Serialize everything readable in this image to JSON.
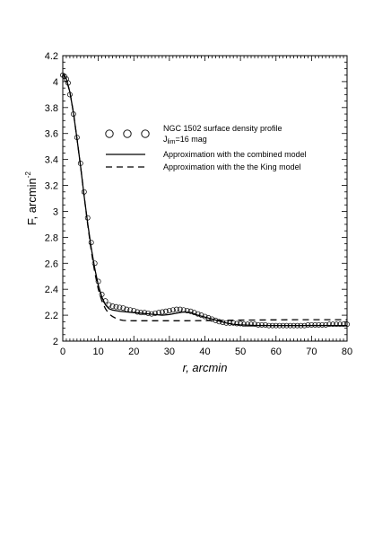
{
  "chart_data": {
    "type": "scatter",
    "xlabel": "r, arcmin",
    "ylabel": "F, arcmin",
    "ylabel_superscript": "-2",
    "xlim": [
      0,
      80
    ],
    "ylim": [
      2,
      4.2
    ],
    "x_ticks": [
      0,
      10,
      20,
      30,
      40,
      50,
      60,
      70,
      80
    ],
    "y_ticks": [
      2,
      2.2,
      2.4,
      2.6,
      2.8,
      3,
      3.2,
      3.4,
      3.6,
      3.8,
      4,
      4.2
    ],
    "x_tick_labels": [
      "0",
      "10",
      "20",
      "30",
      "40",
      "50",
      "60",
      "70",
      "80"
    ],
    "y_tick_labels": [
      "2",
      "2.2",
      "2.4",
      "2.6",
      "2.8",
      "3",
      "3.2",
      "3.4",
      "3.6",
      "3.8",
      "4",
      "4.2"
    ],
    "grid": false,
    "legend_position": "upper-right",
    "legend": {
      "observed_line1": "NGC 1502 surface density profile",
      "observed_line2_main": "J",
      "observed_line2_sub": "lim",
      "observed_line2_rest": "=16 mag",
      "combined": "Approximation with the combined model",
      "king": "Approximation with the the King model"
    },
    "series": [
      {
        "name": "NGC 1502 surface density profile",
        "style": "open-circles",
        "x": [
          0,
          0.5,
          1,
          1.5,
          2,
          3,
          4,
          5,
          6,
          7,
          8,
          9,
          10,
          11,
          12,
          13,
          14,
          15,
          16,
          17,
          18,
          19,
          20,
          21,
          22,
          23,
          24,
          25,
          26,
          27,
          28,
          29,
          30,
          31,
          32,
          33,
          34,
          35,
          36,
          37,
          38,
          39,
          40,
          41,
          42,
          43,
          44,
          45,
          46,
          47,
          48,
          49,
          50,
          51,
          52,
          53,
          54,
          55,
          56,
          57,
          58,
          59,
          60,
          61,
          62,
          63,
          64,
          65,
          66,
          67,
          68,
          69,
          70,
          71,
          72,
          73,
          74,
          75,
          76,
          77,
          78,
          79,
          80
        ],
        "y": [
          4.05,
          4.04,
          4.02,
          3.99,
          3.9,
          3.75,
          3.57,
          3.37,
          3.15,
          2.95,
          2.76,
          2.6,
          2.46,
          2.36,
          2.31,
          2.28,
          2.27,
          2.265,
          2.26,
          2.255,
          2.245,
          2.24,
          2.235,
          2.225,
          2.22,
          2.22,
          2.215,
          2.21,
          2.215,
          2.22,
          2.225,
          2.23,
          2.235,
          2.24,
          2.245,
          2.245,
          2.24,
          2.235,
          2.23,
          2.22,
          2.21,
          2.2,
          2.19,
          2.18,
          2.17,
          2.16,
          2.15,
          2.145,
          2.14,
          2.14,
          2.14,
          2.135,
          2.135,
          2.13,
          2.13,
          2.13,
          2.13,
          2.125,
          2.125,
          2.125,
          2.12,
          2.12,
          2.12,
          2.12,
          2.12,
          2.12,
          2.12,
          2.12,
          2.12,
          2.12,
          2.12,
          2.125,
          2.125,
          2.125,
          2.125,
          2.125,
          2.125,
          2.13,
          2.13,
          2.13,
          2.13,
          2.13,
          2.13
        ]
      },
      {
        "name": "Approximation with the combined model",
        "style": "solid",
        "x": [
          0,
          1,
          2,
          3,
          4,
          5,
          6,
          7,
          8,
          9,
          10,
          11,
          12,
          13,
          14,
          15,
          16,
          18,
          20,
          22,
          24,
          26,
          28,
          30,
          32,
          34,
          36,
          38,
          40,
          42,
          44,
          46,
          48,
          50,
          55,
          60,
          65,
          70,
          75,
          80
        ],
        "y": [
          4.06,
          4.02,
          3.92,
          3.76,
          3.56,
          3.35,
          3.12,
          2.91,
          2.72,
          2.56,
          2.43,
          2.34,
          2.28,
          2.25,
          2.24,
          2.235,
          2.23,
          2.225,
          2.22,
          2.215,
          2.21,
          2.205,
          2.2,
          2.205,
          2.215,
          2.225,
          2.22,
          2.2,
          2.185,
          2.17,
          2.155,
          2.14,
          2.13,
          2.125,
          2.12,
          2.12,
          2.12,
          2.12,
          2.12,
          2.12
        ]
      },
      {
        "name": "Approximation with the the King model",
        "style": "dashed",
        "x": [
          0,
          1,
          2,
          3,
          4,
          5,
          6,
          7,
          8,
          9,
          10,
          11,
          12,
          13,
          14,
          15,
          16,
          17,
          18,
          20,
          25,
          30,
          35,
          40,
          45,
          50,
          55,
          60,
          65,
          70,
          75,
          80
        ],
        "y": [
          4.06,
          4.02,
          3.92,
          3.76,
          3.56,
          3.35,
          3.12,
          2.9,
          2.7,
          2.53,
          2.4,
          2.31,
          2.25,
          2.21,
          2.19,
          2.175,
          2.165,
          2.16,
          2.158,
          2.157,
          2.157,
          2.157,
          2.157,
          2.158,
          2.16,
          2.162,
          2.163,
          2.164,
          2.165,
          2.165,
          2.165,
          2.165
        ]
      }
    ]
  }
}
